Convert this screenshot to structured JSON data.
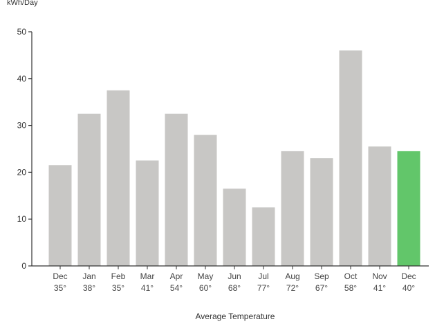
{
  "chart_data": {
    "type": "bar",
    "title": "",
    "ylabel": "kWh/Day",
    "xlabel": "Average Temperature",
    "ylim": [
      0,
      50
    ],
    "yticks": [
      0,
      10,
      20,
      30,
      40,
      50
    ],
    "grid": false,
    "categories": [
      "Dec",
      "Jan",
      "Feb",
      "Mar",
      "Apr",
      "May",
      "Jun",
      "Jul",
      "Aug",
      "Sep",
      "Oct",
      "Nov",
      "Dec"
    ],
    "temperatures": [
      "35°",
      "38°",
      "35°",
      "41°",
      "54°",
      "60°",
      "68°",
      "77°",
      "72°",
      "67°",
      "58°",
      "41°",
      "40°"
    ],
    "values": [
      21.5,
      32.5,
      37.5,
      22.5,
      32.5,
      28,
      16.5,
      12.5,
      24.5,
      23,
      46,
      25.5,
      24.5
    ],
    "highlight_index": 12,
    "colors": {
      "bar": "#c8c7c5",
      "highlight": "#62c66a",
      "axis": "#333333"
    }
  }
}
